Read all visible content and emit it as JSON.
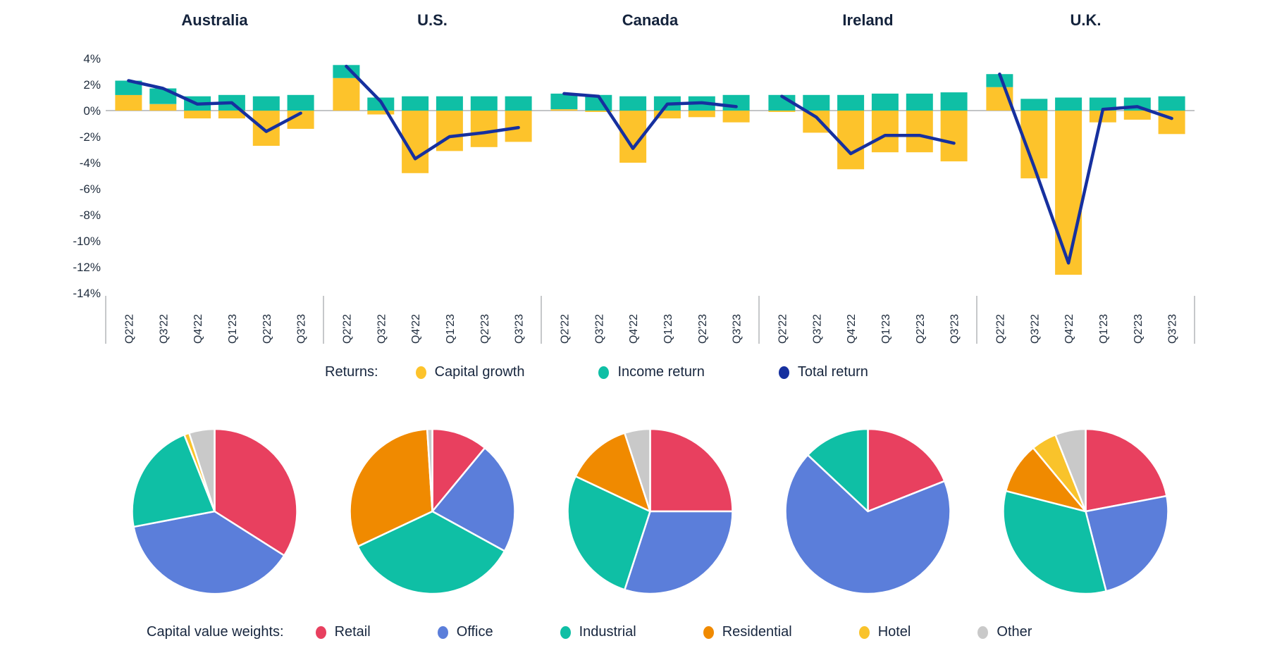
{
  "text_color": "#17263E",
  "chart_data": [
    {
      "type": "bar",
      "subtype": "stacked-bars-with-line, small multiples by country",
      "legend_label": "Returns:",
      "categories": [
        "Q2'22",
        "Q3'22",
        "Q4'22",
        "Q1'23",
        "Q2'23",
        "Q3'23"
      ],
      "ylim": [
        -14,
        5
      ],
      "ytick_labels": [
        "4%",
        "2%",
        "0%",
        "-2%",
        "-4%",
        "-6%",
        "-8%",
        "-10%",
        "-12%",
        "-14%"
      ],
      "ytick_values": [
        4,
        2,
        0,
        -2,
        -4,
        -6,
        -8,
        -10,
        -12,
        -14
      ],
      "grid": "zero-line only",
      "legend_position": "below chart",
      "series_meta": [
        {
          "name": "Capital growth",
          "color": "#FDC32B",
          "kind": "bar"
        },
        {
          "name": "Income return",
          "color": "#0FBFA5",
          "kind": "bar"
        },
        {
          "name": "Total return",
          "color": "#16309F",
          "kind": "line"
        }
      ],
      "panels": [
        {
          "country": "Australia",
          "capital_growth": [
            1.2,
            0.5,
            -0.6,
            -0.6,
            -2.7,
            -1.4
          ],
          "income_return": [
            1.1,
            1.2,
            1.1,
            1.2,
            1.1,
            1.2
          ],
          "total_return": [
            2.3,
            1.7,
            0.5,
            0.6,
            -1.6,
            -0.2
          ]
        },
        {
          "country": "U.S.",
          "capital_growth": [
            2.5,
            -0.3,
            -4.8,
            -3.1,
            -2.8,
            -2.4
          ],
          "income_return": [
            1.0,
            1.0,
            1.1,
            1.1,
            1.1,
            1.1
          ],
          "total_return": [
            3.4,
            0.7,
            -3.7,
            -2.0,
            -1.7,
            -1.3
          ]
        },
        {
          "country": "Canada",
          "capital_growth": [
            0.1,
            -0.1,
            -4.0,
            -0.6,
            -0.5,
            -0.9
          ],
          "income_return": [
            1.2,
            1.2,
            1.1,
            1.1,
            1.1,
            1.2
          ],
          "total_return": [
            1.3,
            1.1,
            -2.9,
            0.5,
            0.6,
            0.3
          ]
        },
        {
          "country": "Ireland",
          "capital_growth": [
            -0.1,
            -1.7,
            -4.5,
            -3.2,
            -3.2,
            -3.9
          ],
          "income_return": [
            1.2,
            1.2,
            1.2,
            1.3,
            1.3,
            1.4
          ],
          "total_return": [
            1.1,
            -0.5,
            -3.3,
            -1.9,
            -1.9,
            -2.5
          ]
        },
        {
          "country": "U.K.",
          "capital_growth": [
            1.8,
            -5.2,
            -12.6,
            -0.9,
            -0.7,
            -1.8
          ],
          "income_return": [
            1.0,
            0.9,
            1.0,
            1.0,
            1.0,
            1.1
          ],
          "total_return": [
            2.8,
            -4.3,
            -11.7,
            0.1,
            0.3,
            -0.6
          ]
        }
      ]
    },
    {
      "type": "pie",
      "subtype": "small multiples by country, slices clockwise from top",
      "legend_label": "Capital value weights:",
      "legend_position": "below chart",
      "slice_meta": [
        {
          "name": "Retail",
          "color": "#E8405F"
        },
        {
          "name": "Office",
          "color": "#5B7EDA"
        },
        {
          "name": "Industrial",
          "color": "#0FBFA5"
        },
        {
          "name": "Residential",
          "color": "#F08A00"
        },
        {
          "name": "Hotel",
          "color": "#F9C32B"
        },
        {
          "name": "Other",
          "color": "#C9C9C9"
        }
      ],
      "panels": [
        {
          "country": "Australia",
          "values": [
            34,
            38,
            22,
            0,
            1,
            5
          ]
        },
        {
          "country": "U.S.",
          "values": [
            11,
            22,
            35,
            31,
            0,
            1
          ]
        },
        {
          "country": "Canada",
          "values": [
            25,
            30,
            27,
            13,
            0,
            5
          ]
        },
        {
          "country": "Ireland",
          "values": [
            19,
            68,
            13,
            0,
            0,
            0
          ]
        },
        {
          "country": "U.K.",
          "values": [
            22,
            24,
            33,
            10,
            5,
            6
          ]
        }
      ]
    }
  ]
}
